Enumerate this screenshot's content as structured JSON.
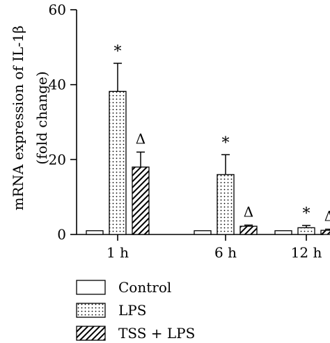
{
  "chart_data": {
    "type": "bar",
    "ylabel": "mRNA expression of IL-1β (fold change)",
    "ylabel_lines": [
      "mRNA expression of IL-1β",
      "(fold change)"
    ],
    "ylim": [
      0,
      60
    ],
    "yticks": [
      0,
      20,
      40,
      60
    ],
    "categories": [
      "1 h",
      "6 h",
      "12 h"
    ],
    "series": [
      {
        "name": "Control",
        "pattern": "plain",
        "values": [
          1.0,
          1.0,
          1.0
        ],
        "errors": [
          0.0,
          0.0,
          0.0
        ],
        "annotations": [
          "",
          "",
          ""
        ]
      },
      {
        "name": "LPS",
        "pattern": "dots",
        "values": [
          38.2,
          16.0,
          1.8
        ],
        "errors": [
          7.5,
          5.3,
          0.6
        ],
        "annotations": [
          "*",
          "*",
          "*"
        ]
      },
      {
        "name": "TSS + LPS",
        "pattern": "hatch",
        "values": [
          18.0,
          2.2,
          1.1
        ],
        "errors": [
          4.0,
          0.3,
          0.3
        ],
        "annotations": [
          "Δ",
          "Δ",
          "Δ"
        ]
      }
    ],
    "legend": {
      "position": "bottom-left"
    },
    "grid": false
  }
}
